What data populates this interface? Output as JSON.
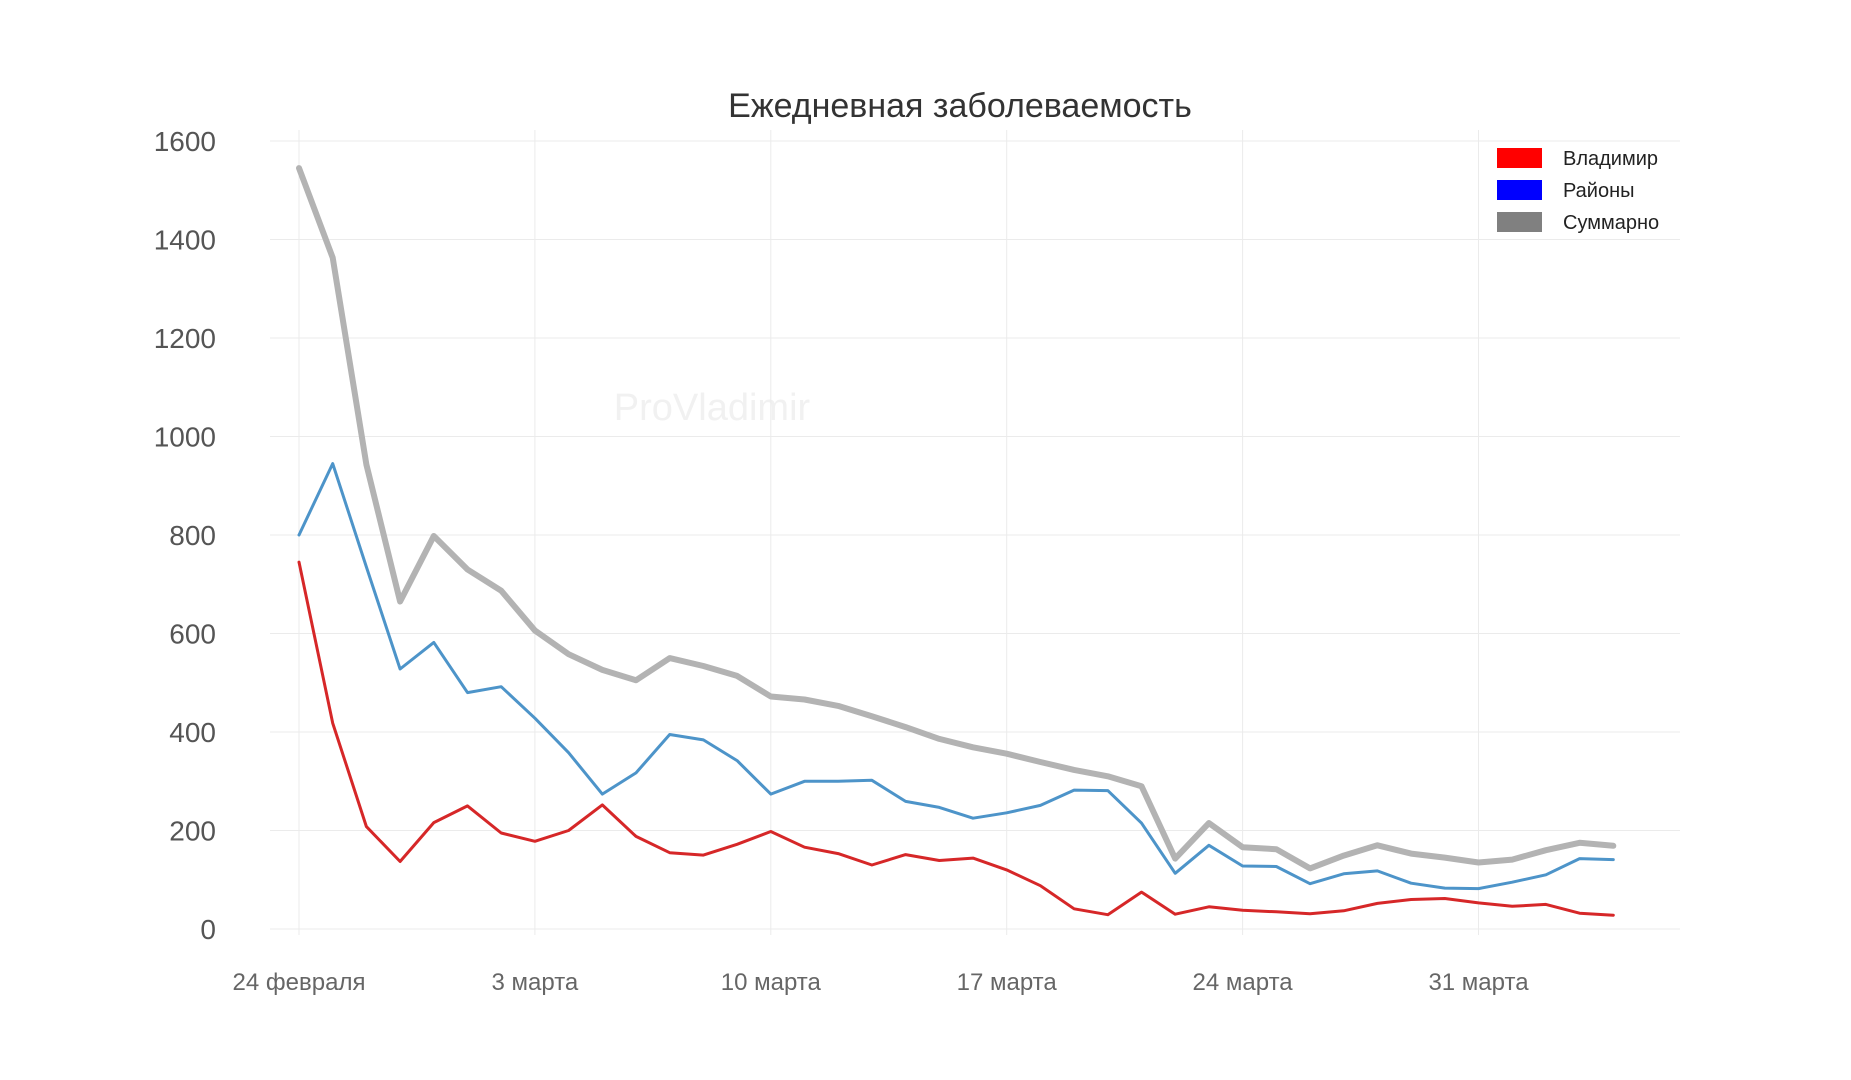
{
  "chart_data": {
    "type": "line",
    "title": "Ежедневная заболеваемость",
    "watermark": "ProVladimir",
    "xlabel": "",
    "ylabel": "",
    "x_tick_labels": [
      "24 февраля",
      "3 марта",
      "10 марта",
      "17 марта",
      "24 марта",
      "31 марта"
    ],
    "x_tick_day_index": [
      0,
      7,
      14,
      21,
      28,
      35
    ],
    "ylim": [
      0,
      1600
    ],
    "y_ticks": [
      0,
      200,
      400,
      600,
      800,
      1000,
      1200,
      1400,
      1600
    ],
    "grid": true,
    "legend_position": "top-right",
    "series": [
      {
        "name": "Владимир",
        "color": "#d62728",
        "legend_color": "#ff0000",
        "values": [
          745,
          418,
          208,
          137,
          216,
          250,
          195,
          178,
          200,
          252,
          188,
          155,
          150,
          172,
          198,
          166,
          153,
          130,
          151,
          139,
          144,
          120,
          88,
          41,
          29,
          75,
          30,
          45,
          38,
          35,
          31,
          37,
          52,
          60,
          62,
          53,
          46,
          50,
          32,
          28
        ]
      },
      {
        "name": "Районы",
        "color": "#4d94c9",
        "legend_color": "#0000ff",
        "values": [
          800,
          945,
          735,
          528,
          582,
          480,
          492,
          428,
          358,
          274,
          317,
          395,
          384,
          342,
          274,
          300,
          300,
          302,
          259,
          247,
          225,
          236,
          251,
          282,
          281,
          215,
          113,
          170,
          128,
          127,
          92,
          112,
          118,
          93,
          83,
          82,
          95,
          110,
          143,
          141
        ]
      },
      {
        "name": "Суммарно",
        "color": "#b3b3b3",
        "legend_color": "#808080",
        "values": [
          1545,
          1363,
          943,
          665,
          798,
          730,
          687,
          606,
          558,
          526,
          505,
          550,
          534,
          514,
          472,
          466,
          453,
          432,
          410,
          386,
          369,
          356,
          339,
          323,
          310,
          290,
          143,
          215,
          166,
          162,
          123,
          149,
          170,
          153,
          145,
          135,
          141,
          160,
          175,
          169
        ]
      }
    ]
  }
}
